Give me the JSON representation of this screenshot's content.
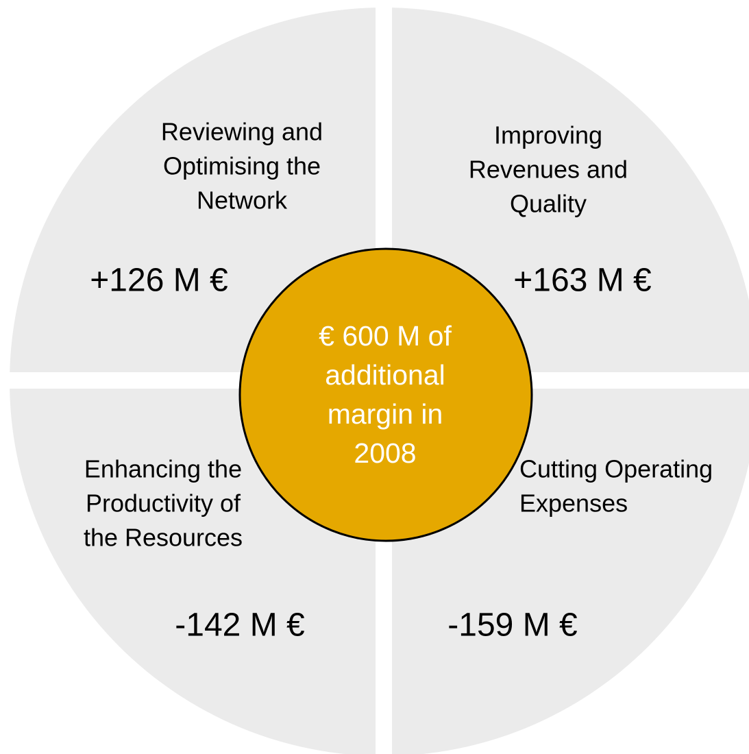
{
  "center": {
    "lines": [
      "€ 600 M of",
      "additional",
      "margin in",
      "2008"
    ]
  },
  "quadrants": [
    {
      "label_lines": [
        "Reviewing and",
        "Optimising the",
        "Network"
      ],
      "value": "+126 M €"
    },
    {
      "label_lines": [
        "Improving",
        "Revenues and",
        "Quality"
      ],
      "value": "+163 M €"
    },
    {
      "label_lines": [
        "Enhancing the",
        "Productivity of",
        "the Resources"
      ],
      "value": "-142 M €"
    },
    {
      "label_lines": [
        "Cutting Operating",
        "Expenses"
      ],
      "value": "-159 M €"
    }
  ]
}
